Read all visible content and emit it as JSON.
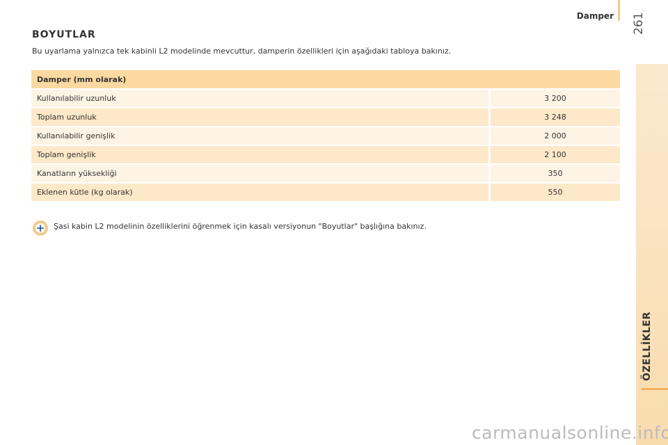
{
  "header": {
    "section": "Damper",
    "page_number": "261",
    "side_tab": "ÖZELLİKLER"
  },
  "title": "BOYUTLAR",
  "intro": "Bu uyarlama yalnızca tek kabinli L2 modelinde mevcuttur, damperin özellikleri için aşağıdaki tabloya bakınız.",
  "table": {
    "header": "Damper (mm olarak)",
    "rows": [
      [
        "Kullanılabilir uzunluk",
        "3 200"
      ],
      [
        "Toplam uzunluk",
        "3 248"
      ],
      [
        "Kullanılabilir genişlik",
        "2 000"
      ],
      [
        "Toplam genişlik",
        "2 100"
      ],
      [
        "Kanatların yüksekliği",
        "350"
      ],
      [
        "Eklenen kütle (kg olarak)",
        "550"
      ]
    ]
  },
  "note": "Şasi kabin L2 modelinin özelliklerini öğrenmek için kasalı versiyonun \"Boyutlar\" başlığına bakınız.",
  "watermark": "carmanualsonline.info"
}
